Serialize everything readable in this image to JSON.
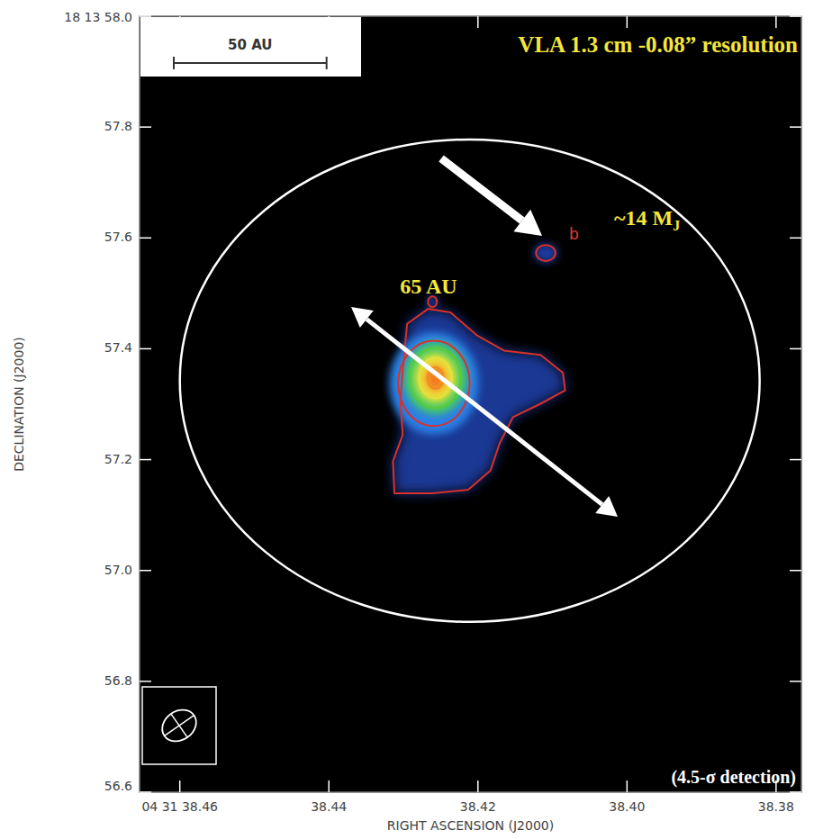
{
  "chart_data": {
    "type": "image",
    "title": "VLA 1.3 cm -0.08” resolution",
    "x_label": "RIGHT ASCENSION (J2000)",
    "y_label": "DECLINATION (J2000)",
    "xlim": [
      38.4654,
      38.3766
    ],
    "ylim": [
      56.6,
      58.0
    ],
    "xticks": [
      {
        "value": 38.46,
        "label": "04 31 38.46"
      },
      38.44,
      38.42,
      {
        "value": 38.4,
        "label": "38.40"
      },
      38.38
    ],
    "yticks": [
      {
        "value": 58.0,
        "label": "18 13 58.0"
      },
      57.8,
      57.6,
      57.4,
      57.2,
      {
        "value": 57.0,
        "label": "57.0"
      },
      56.8,
      56.6
    ],
    "scale_bar": {
      "label": "50 AU",
      "ra_length": 0.0205
    },
    "annotations": [
      {
        "text": "65 AU"
      },
      {
        "text": "~14 M",
        "subscript": "J"
      },
      {
        "text": "b"
      },
      {
        "text": "(4.5-σ detection)"
      }
    ],
    "envelope": {
      "ra": 38.4211,
      "dec": 57.3424,
      "ra_radius": 0.0389,
      "dec_radius": 0.4352
    },
    "contours": [
      {
        "color": "#d8312a",
        "polygon": [
          [
            38.4295,
            57.4448
          ],
          [
            38.4267,
            57.472
          ],
          [
            38.4237,
            57.4656
          ],
          [
            38.4201,
            57.424
          ],
          [
            38.4165,
            57.3968
          ],
          [
            38.4116,
            57.3888
          ],
          [
            38.4086,
            57.3568
          ],
          [
            38.4083,
            57.3248
          ],
          [
            38.4116,
            57.3008
          ],
          [
            38.4153,
            57.2768
          ],
          [
            38.4171,
            57.2288
          ],
          [
            38.4183,
            57.1808
          ],
          [
            38.4213,
            57.1456
          ],
          [
            38.4261,
            57.1392
          ],
          [
            38.4312,
            57.1392
          ],
          [
            38.4314,
            57.1968
          ],
          [
            38.4301,
            57.2448
          ],
          [
            38.4304,
            57.3088
          ],
          [
            38.43,
            57.3728
          ]
        ]
      },
      {
        "color": "#d8312a",
        "ellipse": {
          "ra": 38.4261,
          "dec": 57.4848,
          "ra_radius": 0.0006,
          "dec_radius": 0.0096
        }
      },
      {
        "color": "#d8312a",
        "ellipse": {
          "ra": 38.4109,
          "dec": 57.5728,
          "ra_radius": 0.0013,
          "dec_radius": 0.0144
        }
      },
      {
        "color": "#d8312a",
        "ellipse": {
          "ra": 38.4259,
          "dec": 57.3376,
          "ra_radius": 0.0048,
          "dec_radius": 0.0768
        }
      },
      {
        "color": "#5cc93c",
        "ellipse": {
          "ra": 38.4257,
          "dec": 57.3472,
          "ra_radius": 0.0034,
          "dec_radius": 0.0544
        }
      },
      {
        "color": "#e6e23a",
        "ellipse": {
          "ra": 38.4257,
          "dec": 57.3472,
          "ra_radius": 0.0022,
          "dec_radius": 0.0368
        }
      },
      {
        "color": "#f08a24",
        "ellipse": {
          "ra": 38.4257,
          "dec": 57.3472,
          "ra_radius": 0.0011,
          "dec_radius": 0.0192
        }
      }
    ]
  }
}
